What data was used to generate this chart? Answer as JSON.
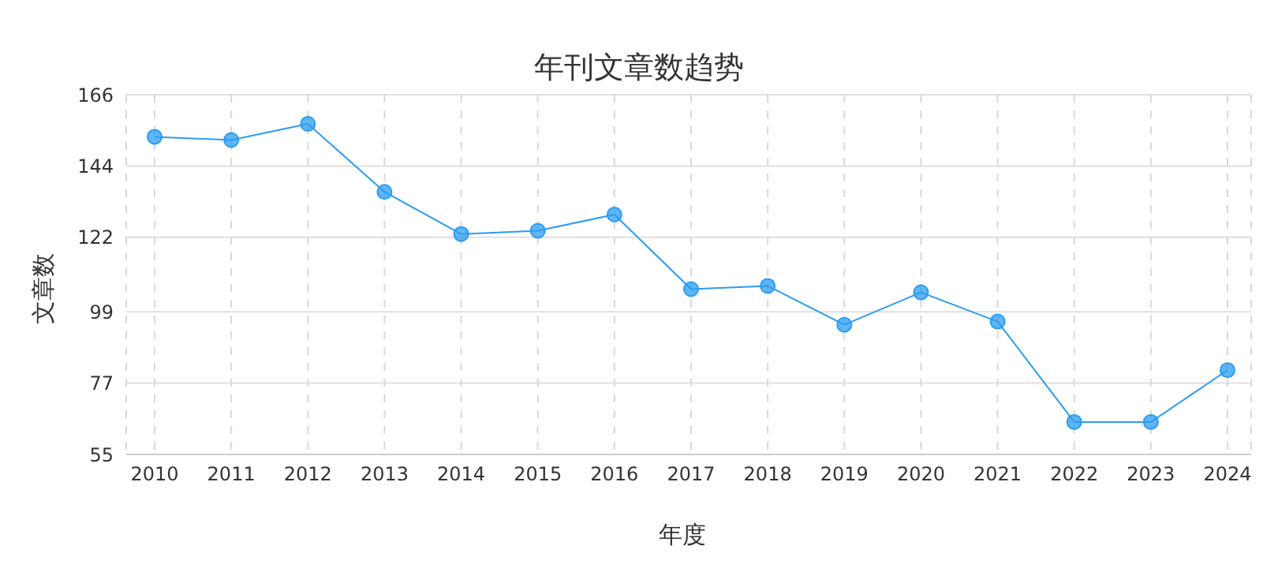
{
  "chart_data": {
    "type": "line",
    "title": "年刊文章数趋势",
    "xlabel": "年度",
    "ylabel": "文章数",
    "categories": [
      "2010",
      "2011",
      "2012",
      "2013",
      "2014",
      "2015",
      "2016",
      "2017",
      "2018",
      "2019",
      "2020",
      "2021",
      "2022",
      "2023",
      "2024"
    ],
    "series": [
      {
        "color": "#2b9cf2",
        "values": [
          153,
          152,
          157,
          136,
          123,
          124,
          129,
          106,
          107,
          95,
          105,
          96,
          65,
          65,
          81
        ]
      }
    ],
    "ylim": [
      55,
      166
    ],
    "yticks": [
      55,
      77,
      99,
      122,
      144,
      166
    ],
    "grid": true,
    "legend": false,
    "marker": "circle",
    "line_style": "solid"
  }
}
